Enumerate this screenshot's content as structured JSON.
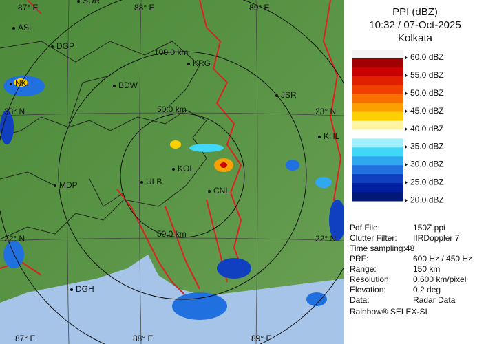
{
  "panel": {
    "title": "PPI (dBZ)",
    "time": "10:32 / 07-Oct-2025",
    "site": "Kolkata"
  },
  "legend": {
    "levels": [
      "60.0 dBZ",
      "55.0 dBZ",
      "50.0 dBZ",
      "45.0 dBZ",
      "40.0 dBZ",
      "35.0 dBZ",
      "30.0 dBZ",
      "25.0 dBZ",
      "20.0 dBZ"
    ],
    "swatch_colors": [
      "#f4f4f4",
      "#a00000",
      "#c80000",
      "#e02000",
      "#f04000",
      "#f87000",
      "#fca000",
      "#fcd000",
      "#fff4a0",
      "#ffffff",
      "#a0f0ff",
      "#40d8f8",
      "#30a8f0",
      "#2070e0",
      "#1040c0",
      "#0020a0",
      "#001878"
    ]
  },
  "info": {
    "rows": [
      [
        "Pdf File:",
        "150Z.ppi"
      ],
      [
        "Clutter Filter:",
        "IIRDoppler 7"
      ],
      [
        "Time sampling:48",
        null
      ],
      [
        "PRF:",
        "600 Hz / 450 Hz"
      ],
      [
        "Range:",
        "150 km"
      ],
      [
        "Resolution:",
        "0.600 km/pixel"
      ],
      [
        "Elevation:",
        "0.2 deg"
      ],
      [
        "Data:",
        "Radar Data"
      ]
    ],
    "footer": "Rainbow® SELEX-SI"
  },
  "map": {
    "grid_labels": [
      "87° E",
      "88° E",
      "89° E",
      "87° E",
      "88° E",
      "89° E",
      "23° N",
      "23° N",
      "22° N",
      "22° N"
    ],
    "range_labels": [
      "100.0 km",
      "50.0 km",
      "50.0 km"
    ],
    "cities": [
      "SUR",
      "ASL",
      "DGP",
      "BDW",
      "KRG",
      "JSR",
      "NKI",
      "KHL",
      "MDP",
      "ULB",
      "KOL",
      "CNL",
      "DGH"
    ]
  }
}
